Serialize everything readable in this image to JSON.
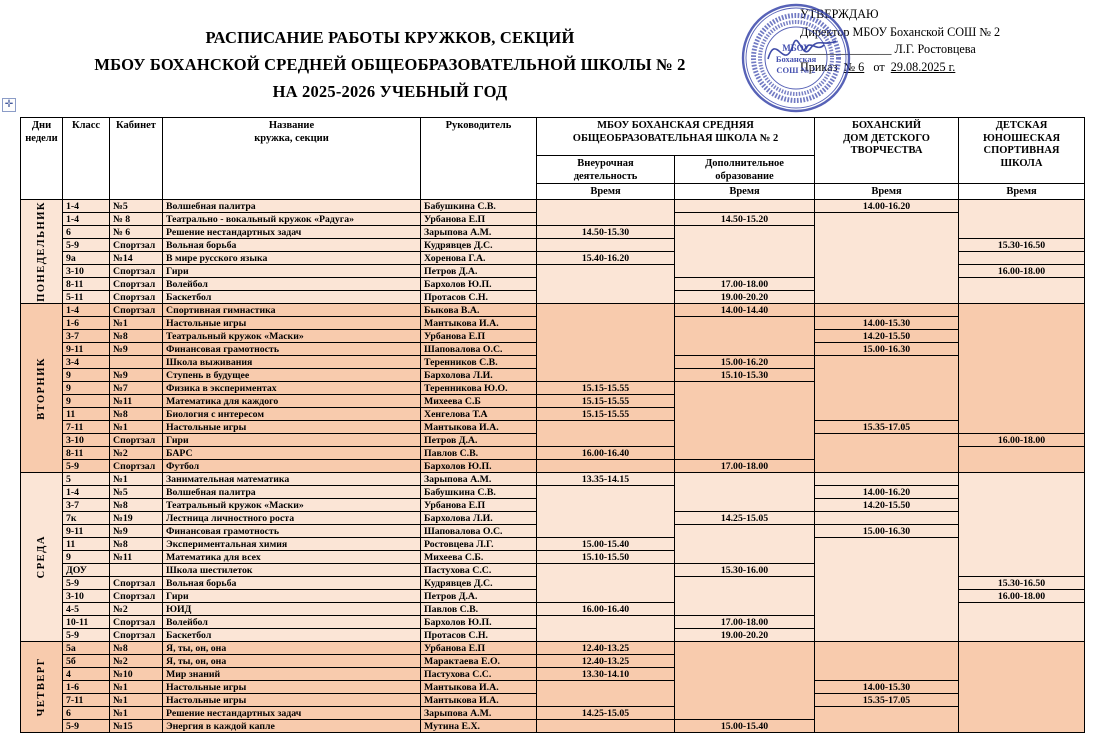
{
  "page": {
    "move_handle_glyph": "✛"
  },
  "title": {
    "line1": "РАСПИСАНИЕ РАБОТЫ КРУЖКОВ,  СЕКЦИЙ",
    "line2": "МБОУ БОХАНСКОЙ СРЕДНЕЙ ОБЩЕОБРАЗОВАТЕЛЬНОЙ ШКОЛЫ № 2",
    "line3": "НА 2025-2026 УЧЕБНЫЙ ГОД"
  },
  "approval": {
    "line1": "УТВЕРЖДАЮ",
    "line2": "Директор МБОУ Боханской СОШ № 2",
    "sign_line": "_______________",
    "sign_name": "Л.Г. Ростовцева",
    "order_label": "Приказ",
    "order_no": "№ 6",
    "order_from": "от",
    "order_date": "29.08.2025 г."
  },
  "stamp": {
    "color": "#3340a8",
    "center_line1": "МБОУ",
    "center_line2": "Боханская",
    "center_line3": "СОШ № 2"
  },
  "table": {
    "columns": {
      "day": "Дни\nнедели",
      "class": "Класс",
      "room": "Кабинет",
      "club": "Название\nкружка, секции",
      "teacher": "Руководитель",
      "school2": "МБОУ БОХАНСКАЯ  СРЕДНЯЯ\nОБЩЕОБРАЗОВАТЕЛЬНАЯ  ШКОЛА  № 2",
      "vneur": "Внеурочная\nдеятельность",
      "dop": "Дополнительное\nобразование",
      "ddt": "БОХАНСКИЙ\nДОМ ДЕТСКОГО\nТВОРЧЕСТВА",
      "dush": "ДЕТСКАЯ\nЮНОШЕСКАЯ\nСПОРТИВНАЯ\nШКОЛА",
      "time": "Время"
    },
    "colors": {
      "light": "#fbe5d6",
      "dark": "#f8cbad"
    },
    "days": [
      {
        "name": "ПОНЕДЕЛЬНИК",
        "color": "#fbe5d6",
        "rows": [
          {
            "cls": "1-4",
            "room": "№5",
            "club": "Волшебная палитра",
            "teacher": "Бабушкина С.В.",
            "t1": "",
            "t2": "",
            "t3": "14.00-16.20",
            "t4": ""
          },
          {
            "cls": "1-4",
            "room": "№ 8",
            "club": "Театрально - вокальный кружок «Радуга»",
            "teacher": "Урбанова Е.П",
            "t1": "",
            "t2": "14.50-15.20",
            "t3": "",
            "t4": ""
          },
          {
            "cls": "6",
            "room": "№ 6",
            "club": "Решение нестандартных задач",
            "teacher": "Зарыпова А.М.",
            "t1": "14.50-15.30",
            "t2": "",
            "t3": "",
            "t4": ""
          },
          {
            "cls": "5-9",
            "room": "Спортзал",
            "club": "Вольная борьба",
            "teacher": "Кудрявцев Д.С.",
            "t1": "",
            "t2": "",
            "t3": "",
            "t4": "15.30-16.50"
          },
          {
            "cls": "9а",
            "room": "№14",
            "club": "В мире русского языка",
            "teacher": "Хоренова Г.А.",
            "t1": "15.40-16.20",
            "t2": "",
            "t3": "",
            "t4": ""
          },
          {
            "cls": "3-10",
            "room": "Спортзал",
            "club": "Гири",
            "teacher": "Петров Д.А.",
            "t1": "",
            "t2": "",
            "t3": "",
            "t4": "16.00-18.00"
          },
          {
            "cls": "8-11",
            "room": "Спортзал",
            "club": "Волейбол",
            "teacher": "Бархолов Ю.П.",
            "t1": "",
            "t2": "17.00-18.00",
            "t3": "",
            "t4": ""
          },
          {
            "cls": "5-11",
            "room": "Спортзал",
            "club": "Баскетбол",
            "teacher": "Протасов С.Н.",
            "t1": "",
            "t2": "19.00-20.20",
            "t3": "",
            "t4": ""
          }
        ]
      },
      {
        "name": "ВТОРНИК",
        "color": "#f8cbad",
        "rows": [
          {
            "cls": "1-4",
            "room": "Спортзал",
            "club": "Спортивная гимнастика",
            "teacher": "Быкова В.А.",
            "t1": "",
            "t2": "14.00-14.40",
            "t3": "",
            "t4": ""
          },
          {
            "cls": "1-6",
            "room": "№1",
            "club": "Настольные игры",
            "teacher": "Мантыкова И.А.",
            "t1": "",
            "t2": "",
            "t3": "14.00-15.30",
            "t4": ""
          },
          {
            "cls": "3-7",
            "room": "№8",
            "club": "Театральный кружок «Маски»",
            "teacher": "Урбанова Е.П",
            "t1": "",
            "t2": "",
            "t3": "14.20-15.50",
            "t4": ""
          },
          {
            "cls": "9-11",
            "room": "№9",
            "club": "Финансовая грамотность",
            "teacher": "Шаповалова О.С.",
            "t1": "",
            "t2": "",
            "t3": "15.00-16.30",
            "t4": ""
          },
          {
            "cls": "3-4",
            "room": "",
            "club": "Школа выживания",
            "teacher": "Теренников С.В.",
            "t1": "",
            "t2": "15.00-16.20",
            "t3": "",
            "t4": ""
          },
          {
            "cls": "9",
            "room": "№9",
            "club": "Ступень в будущее",
            "teacher": "Бархолова Л.И.",
            "t1": "",
            "t2": "15.10-15.30",
            "t3": "",
            "t4": ""
          },
          {
            "cls": "9",
            "room": "№7",
            "club": "Физика в экспериментах",
            "teacher": "Теренникова Ю.О.",
            "t1": "15.15-15.55",
            "t2": "",
            "t3": "",
            "t4": ""
          },
          {
            "cls": "9",
            "room": "№11",
            "club": "Математика для каждого",
            "teacher": "Михеева С.Б",
            "t1": "15.15-15.55",
            "t2": "",
            "t3": "",
            "t4": ""
          },
          {
            "cls": "11",
            "room": "№8",
            "club": "Биология с интересом",
            "teacher": "Хенгелова Т.А",
            "t1": "15.15-15.55",
            "t2": "",
            "t3": "",
            "t4": ""
          },
          {
            "cls": "7-11",
            "room": "№1",
            "club": "Настольные игры",
            "teacher": "Мантыкова И.А.",
            "t1": "",
            "t2": "",
            "t3": "15.35-17.05",
            "t4": ""
          },
          {
            "cls": "3-10",
            "room": "Спортзал",
            "club": "Гири",
            "teacher": "Петров Д.А.",
            "t1": "",
            "t2": "",
            "t3": "",
            "t4": "16.00-18.00"
          },
          {
            "cls": "8-11",
            "room": "№2",
            "club": "БАРС",
            "teacher": "Павлов С.В.",
            "t1": "16.00-16.40",
            "t2": "",
            "t3": "",
            "t4": ""
          },
          {
            "cls": "5-9",
            "room": "Спортзал",
            "club": "Футбол",
            "teacher": "Бархолов Ю.П.",
            "t1": "",
            "t2": "17.00-18.00",
            "t3": "",
            "t4": ""
          }
        ]
      },
      {
        "name": "СРЕДА",
        "color": "#fbe5d6",
        "rows": [
          {
            "cls": "5",
            "room": "№1",
            "club": "Занимательная математика",
            "teacher": "Зарыпова А.М.",
            "t1": "13.35-14.15",
            "t2": "",
            "t3": "",
            "t4": ""
          },
          {
            "cls": "1-4",
            "room": "№5",
            "club": "Волшебная палитра",
            "teacher": "Бабушкина С.В.",
            "t1": "",
            "t2": "",
            "t3": "14.00-16.20",
            "t4": ""
          },
          {
            "cls": "3-7",
            "room": "№8",
            "club": "Театральный кружок «Маски»",
            "teacher": "Урбанова Е.П",
            "t1": "",
            "t2": "",
            "t3": "14.20-15.50",
            "t4": ""
          },
          {
            "cls": "7к",
            "room": "№19",
            "club": "Лестница личностного роста",
            "teacher": "Бархолова Л.И.",
            "t1": "",
            "t2": "14.25-15.05",
            "t3": "",
            "t4": ""
          },
          {
            "cls": "9-11",
            "room": "№9",
            "club": "Финансовая грамотность",
            "teacher": "Шаповалова О.С.",
            "t1": "",
            "t2": "",
            "t3": "15.00-16.30",
            "t4": ""
          },
          {
            "cls": "11",
            "room": "№8",
            "club": "Экспериментальная химия",
            "teacher": "Ростовцева Л.Г.",
            "t1": "15.00-15.40",
            "t2": "",
            "t3": "",
            "t4": ""
          },
          {
            "cls": "9",
            "room": "№11",
            "club": "Математика для всех",
            "teacher": "Михеева С.Б.",
            "t1": "15.10-15.50",
            "t2": "",
            "t3": "",
            "t4": ""
          },
          {
            "cls": "ДОУ",
            "room": "",
            "club": "Школа шестилеток",
            "teacher": "Пастухова С.С.",
            "t1": "",
            "t2": "15.30-16.00",
            "t3": "",
            "t4": ""
          },
          {
            "cls": "5-9",
            "room": "Спортзал",
            "club": "Вольная борьба",
            "teacher": "Кудрявцев Д.С.",
            "t1": "",
            "t2": "",
            "t3": "",
            "t4": "15.30-16.50"
          },
          {
            "cls": "3-10",
            "room": "Спортзал",
            "club": "Гири",
            "teacher": "Петров Д.А.",
            "t1": "",
            "t2": "",
            "t3": "",
            "t4": "16.00-18.00"
          },
          {
            "cls": "4-5",
            "room": "№2",
            "club": "ЮИД",
            "teacher": "Павлов С.В.",
            "t1": "16.00-16.40",
            "t2": "",
            "t3": "",
            "t4": ""
          },
          {
            "cls": "10-11",
            "room": "Спортзал",
            "club": "Волейбол",
            "teacher": "Бархолов Ю.П.",
            "t1": "",
            "t2": "17.00-18.00",
            "t3": "",
            "t4": ""
          },
          {
            "cls": "5-9",
            "room": "Спортзал",
            "club": "Баскетбол",
            "teacher": "Протасов С.Н.",
            "t1": "",
            "t2": "19.00-20.20",
            "t3": "",
            "t4": ""
          }
        ]
      },
      {
        "name": "ЧЕТВЕРГ",
        "color": "#f8cbad",
        "rows": [
          {
            "cls": "5а",
            "room": "№8",
            "club": "Я, ты, он, она",
            "teacher": "Урбанова Е.П",
            "t1": "12.40-13.25",
            "t2": "",
            "t3": "",
            "t4": ""
          },
          {
            "cls": "5б",
            "room": "№2",
            "club": "Я, ты, он, она",
            "teacher": "Марактаева Е.О.",
            "t1": "12.40-13.25",
            "t2": "",
            "t3": "",
            "t4": ""
          },
          {
            "cls": "4",
            "room": "№10",
            "club": "Мир знаний",
            "teacher": "Пастухова С.С.",
            "t1": "13.30-14.10",
            "t2": "",
            "t3": "",
            "t4": ""
          },
          {
            "cls": "1-6",
            "room": "№1",
            "club": "Настольные игры",
            "teacher": "Мантыкова И.А.",
            "t1": "",
            "t2": "",
            "t3": "14.00-15.30",
            "t4": ""
          },
          {
            "cls": "7-11",
            "room": "№1",
            "club": "Настольные игры",
            "teacher": "Мантыкова И.А.",
            "t1": "",
            "t2": "",
            "t3": "15.35-17.05",
            "t4": ""
          },
          {
            "cls": "6",
            "room": "№1",
            "club": "Решение нестандартных задач",
            "teacher": "Зарыпова А.М.",
            "t1": "14.25-15.05",
            "t2": "",
            "t3": "",
            "t4": ""
          },
          {
            "cls": "5-9",
            "room": "№15",
            "club": "Энергия в каждой капле",
            "teacher": "Мутина Е.Х.",
            "t1": "",
            "t2": "15.00-15.40",
            "t3": "",
            "t4": ""
          }
        ]
      }
    ]
  }
}
